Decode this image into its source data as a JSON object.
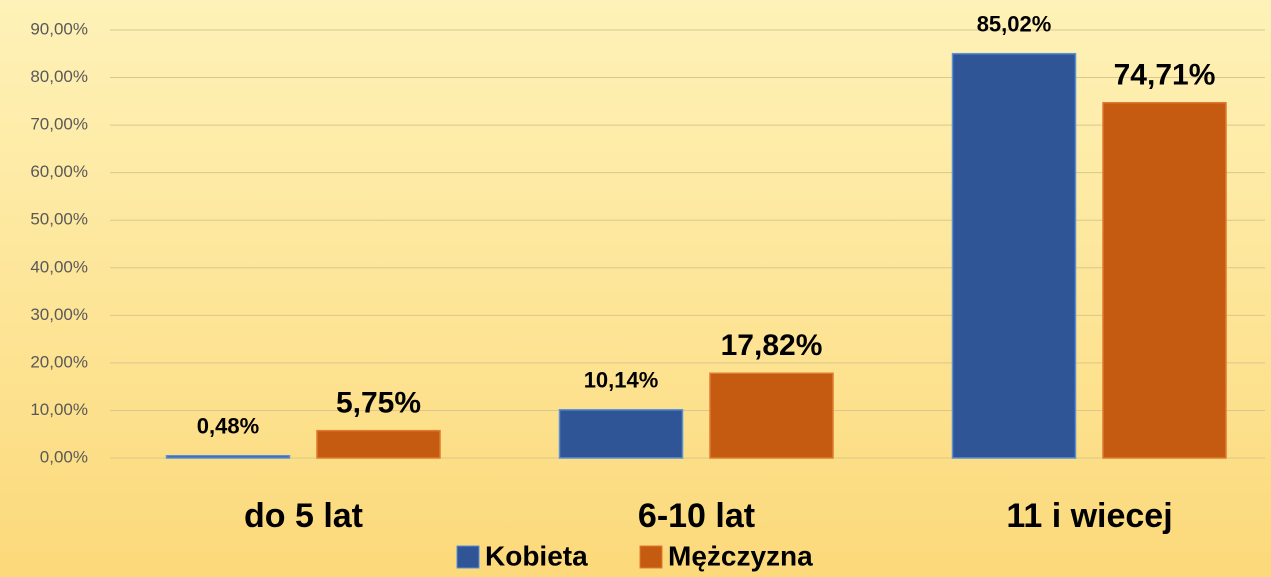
{
  "chart_data": {
    "type": "bar",
    "categories": [
      "do 5 lat",
      "6-10 lat",
      "11 i wiecej"
    ],
    "series": [
      {
        "name": "Kobieta",
        "color": "#2f5597",
        "values": [
          0.48,
          10.14,
          85.02
        ],
        "value_labels": [
          "0,48%",
          "10,14%",
          "85,02%"
        ]
      },
      {
        "name": "Mężczyzna",
        "color": "#c55a11",
        "values": [
          5.75,
          17.82,
          74.71
        ],
        "value_labels": [
          "5,75%",
          "17,82%",
          "74,71%"
        ]
      }
    ],
    "ylim": [
      0,
      90
    ],
    "yticks": [
      {
        "value": 0,
        "label": "0,00%"
      },
      {
        "value": 10,
        "label": "10,00%"
      },
      {
        "value": 20,
        "label": "20,00%"
      },
      {
        "value": 30,
        "label": "30,00%"
      },
      {
        "value": 40,
        "label": "40,00%"
      },
      {
        "value": 50,
        "label": "50,00%"
      },
      {
        "value": 60,
        "label": "60,00%"
      },
      {
        "value": 70,
        "label": "70,00%"
      },
      {
        "value": 80,
        "label": "80,00%"
      },
      {
        "value": 90,
        "label": "90,00%"
      }
    ],
    "grid": true,
    "legend": "bottom"
  }
}
